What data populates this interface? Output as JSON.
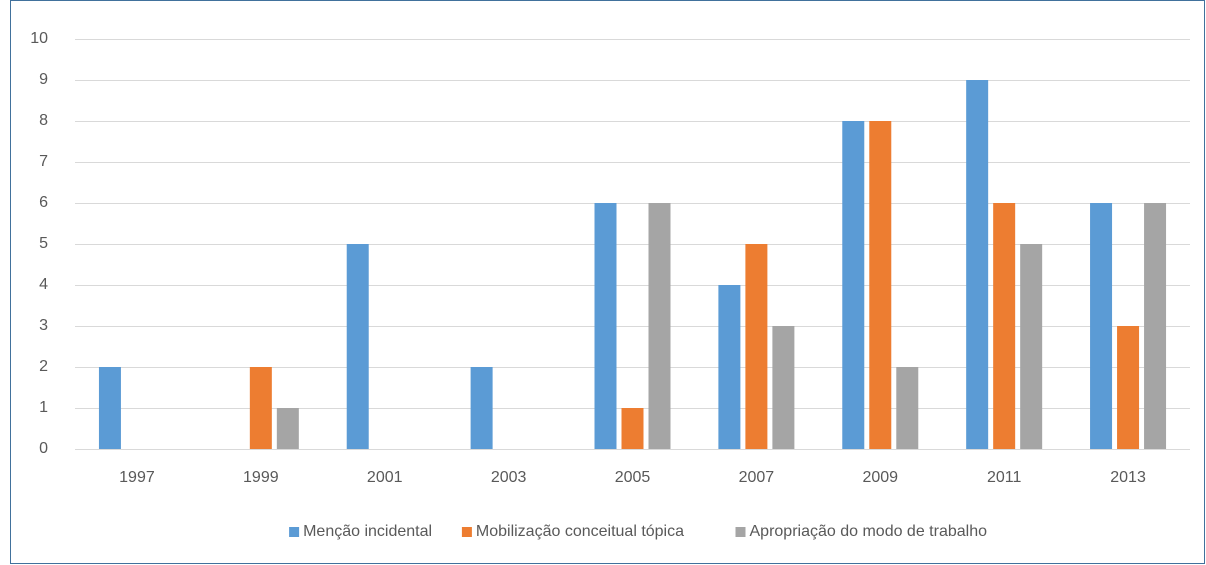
{
  "chart_data": {
    "type": "bar",
    "categories": [
      "1997",
      "1999",
      "2001",
      "2003",
      "2005",
      "2007",
      "2009",
      "2011",
      "2013"
    ],
    "series": [
      {
        "name": "Menção incidental",
        "color": "#5b9bd5",
        "values": [
          2,
          0,
          5,
          2,
          6,
          4,
          8,
          9,
          6
        ]
      },
      {
        "name": "Mobilização conceitual tópica",
        "color": "#ed7d31",
        "values": [
          0,
          2,
          0,
          0,
          1,
          5,
          8,
          6,
          3
        ]
      },
      {
        "name": "Apropriação do modo de trabalho",
        "color": "#a5a5a5",
        "values": [
          0,
          1,
          0,
          0,
          6,
          3,
          2,
          5,
          6
        ]
      }
    ],
    "ylim": [
      0,
      10
    ],
    "yticks": [
      0,
      1,
      2,
      3,
      4,
      5,
      6,
      7,
      8,
      9,
      10
    ],
    "grid": true,
    "legend": "bottom"
  }
}
